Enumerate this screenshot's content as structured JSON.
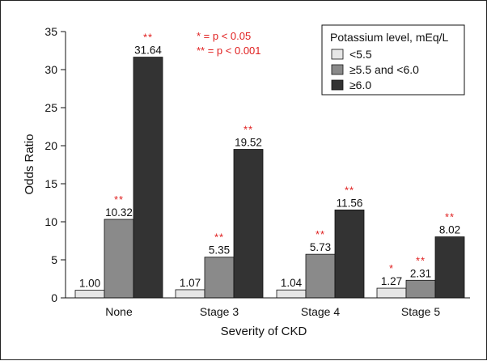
{
  "chart_data": {
    "type": "bar",
    "ylabel": "Odds Ratio",
    "xlabel": "Severity of CKD",
    "ylim": [
      0,
      35
    ],
    "yticks": [
      0,
      5,
      10,
      15,
      20,
      25,
      30,
      35
    ],
    "categories": [
      "None",
      "Stage 3",
      "Stage 4",
      "Stage 5"
    ],
    "legend": {
      "title": "Potassium level, mEq/L",
      "placement": "top-right"
    },
    "series": [
      {
        "name": "<5.5",
        "color": "#e6e6e6",
        "values": [
          1.0,
          1.07,
          1.04,
          1.27
        ],
        "labels": [
          "1.00",
          "1.07",
          "1.04",
          "1.27"
        ],
        "significance": [
          "",
          "",
          "",
          "*"
        ]
      },
      {
        "name": "≥5.5 and <6.0",
        "color": "#8a8a8a",
        "values": [
          10.32,
          5.35,
          5.73,
          2.31
        ],
        "labels": [
          "10.32",
          "5.35",
          "5.73",
          "2.31"
        ],
        "significance": [
          "**",
          "**",
          "**",
          "**"
        ]
      },
      {
        "name": "≥6.0",
        "color": "#333333",
        "values": [
          31.64,
          19.52,
          11.56,
          8.02
        ],
        "labels": [
          "31.64",
          "19.52",
          "11.56",
          "8.02"
        ],
        "significance": [
          "**",
          "**",
          "**",
          "**"
        ]
      }
    ],
    "annotations": [
      "* = p < 0.05",
      "** = p < 0.001"
    ]
  }
}
